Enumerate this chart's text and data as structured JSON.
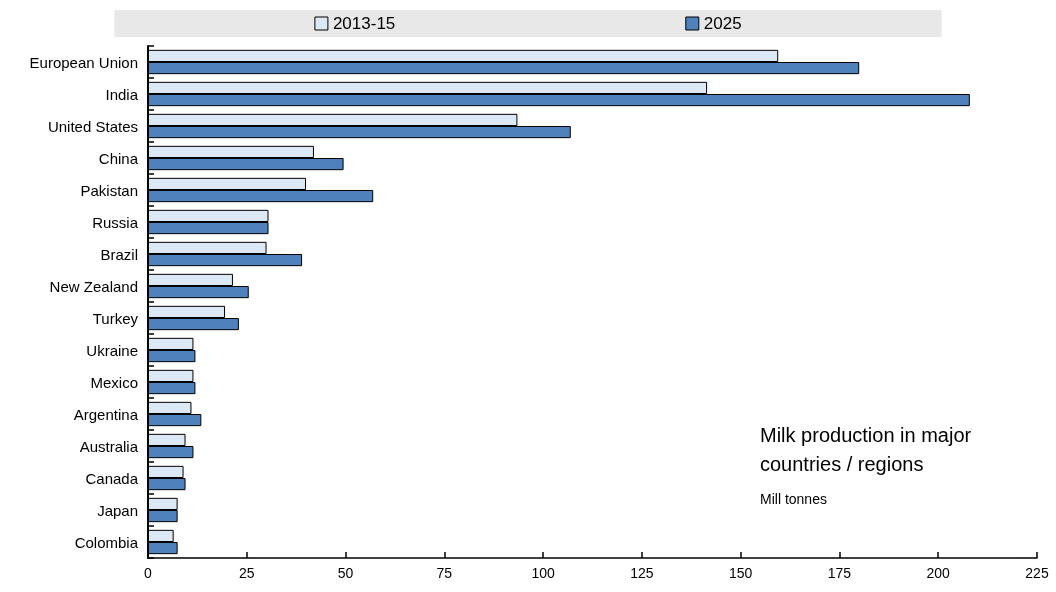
{
  "chart_data": {
    "type": "bar",
    "orientation": "horizontal",
    "categories": [
      "European Union",
      "India",
      "United States",
      "China",
      "Pakistan",
      "Russia",
      "Brazil",
      "New Zealand",
      "Turkey",
      "Ukraine",
      "Mexico",
      "Argentina",
      "Australia",
      "Canada",
      "Japan",
      "Colombia"
    ],
    "series": [
      {
        "name": "2013-15",
        "color": "#dce9f5",
        "values": [
          159.5,
          141.5,
          93.5,
          42,
          40,
          30.5,
          30,
          21.5,
          19.5,
          11.5,
          11.5,
          11,
          9.5,
          9,
          7.5,
          6.5
        ]
      },
      {
        "name": "2025",
        "color": "#4f81bd",
        "values": [
          180,
          208,
          107,
          49.5,
          57,
          30.5,
          39,
          25.5,
          23,
          12,
          12,
          13.5,
          11.5,
          9.5,
          7.5,
          7.5
        ]
      }
    ],
    "xlim": [
      0,
      225
    ],
    "xticks": [
      0,
      25,
      50,
      75,
      100,
      125,
      150,
      175,
      200,
      225
    ],
    "legend": "top",
    "grid": false,
    "annotations": [
      "Milk production in major countries / regions",
      "Mill tonnes"
    ]
  }
}
